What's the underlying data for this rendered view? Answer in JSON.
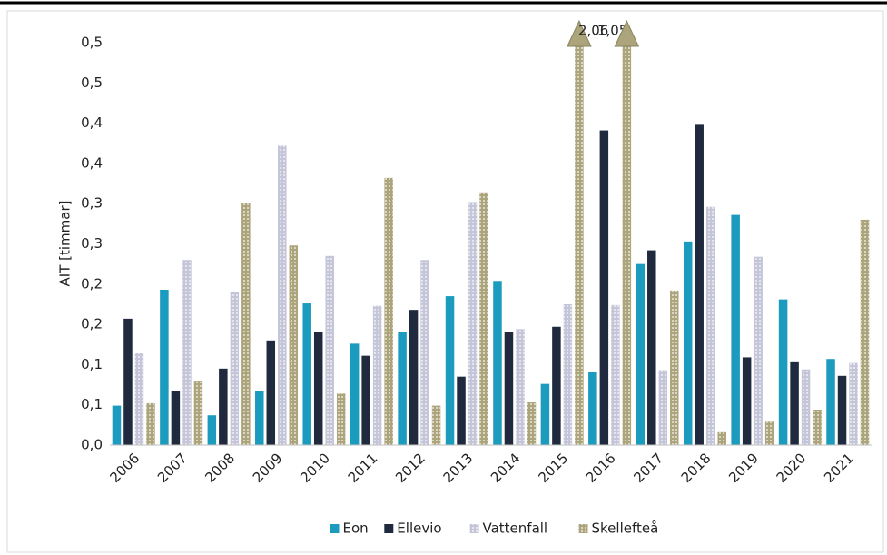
{
  "chart_data": {
    "type": "bar",
    "y_label": "AIT [timmar]",
    "categories": [
      "2006",
      "2007",
      "2008",
      "2009",
      "2010",
      "2011",
      "2012",
      "2013",
      "2014",
      "2015",
      "2016",
      "2017",
      "2018",
      "2019",
      "2020",
      "2021"
    ],
    "series": [
      {
        "name": "Eon",
        "color": "#1b9bbd",
        "values": [
          0.049,
          0.193,
          0.037,
          0.067,
          0.176,
          0.126,
          0.141,
          0.185,
          0.204,
          0.076,
          0.091,
          0.225,
          0.253,
          0.286,
          0.181,
          0.107
        ]
      },
      {
        "name": "Ellevio",
        "color": "#1f2a3e",
        "values": [
          0.157,
          0.067,
          0.095,
          0.13,
          0.14,
          0.111,
          0.168,
          0.085,
          0.14,
          0.147,
          0.391,
          0.242,
          0.398,
          0.109,
          0.104,
          0.086
        ]
      },
      {
        "name": "Vattenfall",
        "color": "#c5c5da",
        "values": [
          0.114,
          0.23,
          0.19,
          0.372,
          0.235,
          0.173,
          0.23,
          0.302,
          0.144,
          0.175,
          0.174,
          0.093,
          0.296,
          0.234,
          0.094,
          0.102
        ]
      },
      {
        "name": "Skellefteå",
        "color": "#aca47a",
        "values": [
          0.052,
          0.08,
          0.301,
          0.248,
          0.064,
          0.332,
          0.049,
          0.314,
          0.053,
          1.05,
          2.06,
          0.192,
          0.016,
          0.029,
          0.044,
          0.28
        ],
        "value_labels": [
          null,
          null,
          null,
          null,
          null,
          null,
          null,
          null,
          null,
          "1,05",
          "2,06",
          null,
          null,
          null,
          null,
          null
        ]
      }
    ],
    "ylim": [
      0,
      0.5
    ],
    "yticks": [
      {
        "value": 0,
        "label": "0,0"
      },
      {
        "value": 0.05,
        "label": "0,1"
      },
      {
        "value": 0.1,
        "label": "0,1"
      },
      {
        "value": 0.15,
        "label": "0,2"
      },
      {
        "value": 0.2,
        "label": "0,2"
      },
      {
        "value": 0.25,
        "label": "0,3"
      },
      {
        "value": 0.3,
        "label": "0,3"
      },
      {
        "value": 0.35,
        "label": "0,4"
      },
      {
        "value": 0.4,
        "label": "0,4"
      },
      {
        "value": 0.45,
        "label": "0,5"
      },
      {
        "value": 0.5,
        "label": "0,5"
      }
    ],
    "grid": false,
    "legend": "bottom"
  }
}
